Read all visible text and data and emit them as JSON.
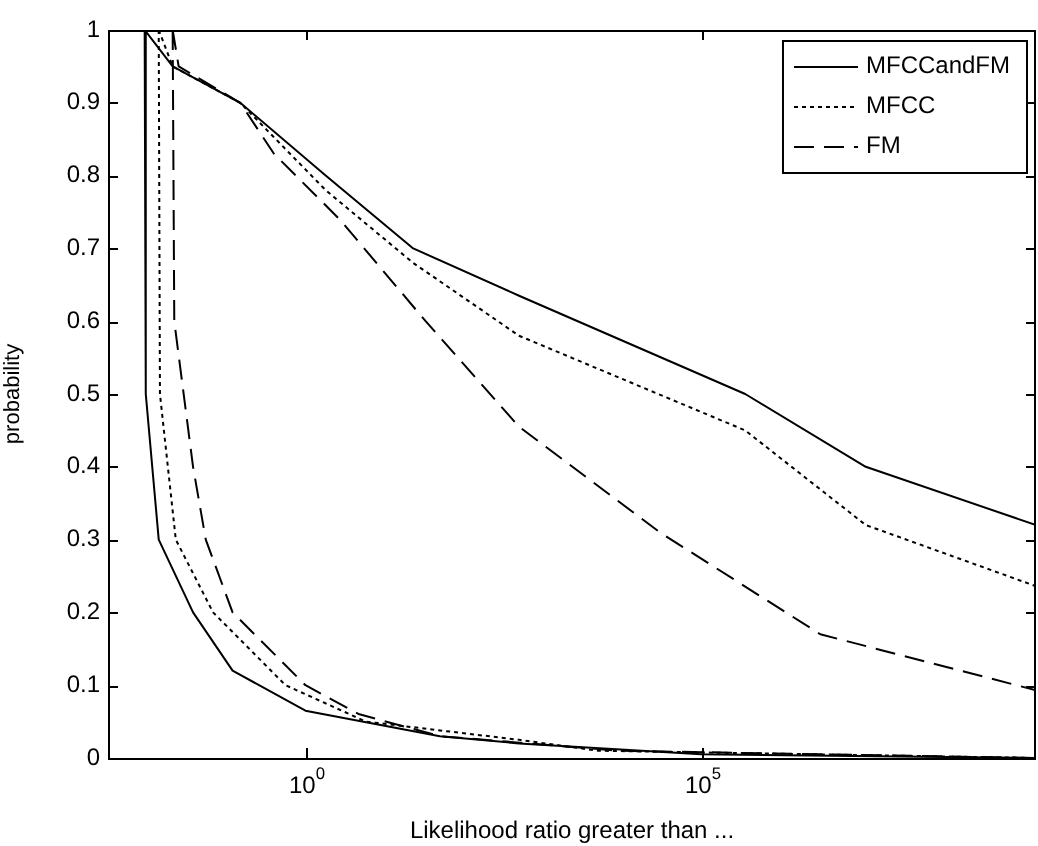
{
  "chart_data": {
    "type": "line",
    "xlabel": "Likelihood ratio greater than ...",
    "ylabel": "probability",
    "log": "x",
    "xlim": [
      0.0032,
      1700000000
    ],
    "xticks": [
      {
        "value": 1,
        "label": "10$^{0}$"
      },
      {
        "value": 100000,
        "label": "10$^{5}$"
      }
    ],
    "ylim": [
      0,
      1
    ],
    "yticks": [
      0,
      0.1,
      0.2,
      0.3,
      0.4,
      0.5,
      0.6,
      0.7,
      0.8,
      0.9,
      1
    ],
    "legend": "top right",
    "grid": false,
    "marker": "none",
    "series": [
      {
        "name": "MFCCandFM",
        "color": "#000000",
        "line_style": "solid",
        "x": [
          0.0093,
          0.021,
          0.15,
          1.8,
          23,
          500,
          360000,
          12000000,
          1700000000,
          null,
          0.0093,
          0.0096,
          0.014,
          0.038,
          0.12,
          1,
          50,
          500,
          100000,
          1700000000
        ],
        "values": [
          1,
          0.95,
          0.9,
          0.8,
          0.7,
          0.635,
          0.5,
          0.4,
          0.32,
          null,
          1,
          0.5,
          0.3,
          0.2,
          0.12,
          0.065,
          0.03,
          0.02,
          0.005,
          0
        ]
      },
      {
        "name": "MFCC",
        "color": "#000000",
        "line_style": "dotted",
        "x": [
          0.014,
          0.021,
          0.15,
          1.8,
          23,
          500,
          360000,
          12000000,
          1700000000,
          null,
          0.014,
          0.0145,
          0.023,
          0.068,
          0.56,
          5.8,
          500,
          5000,
          1700000000
        ],
        "values": [
          1,
          0.95,
          0.9,
          0.78,
          0.68,
          0.58,
          0.45,
          0.32,
          0.236,
          null,
          1,
          0.5,
          0.3,
          0.2,
          0.1,
          0.05,
          0.025,
          0.01,
          0
        ]
      },
      {
        "name": "FM",
        "color": "#000000",
        "line_style": "dashed",
        "x": [
          0.021,
          0.025,
          0.15,
          0.4,
          2.7,
          33,
          500,
          30000,
          3200000,
          1700000000,
          null,
          0.021,
          0.022,
          0.038,
          0.055,
          0.12,
          1,
          4.8,
          50,
          9000,
          1700000000
        ],
        "values": [
          1,
          0.95,
          0.9,
          0.83,
          0.74,
          0.6,
          0.455,
          0.31,
          0.17,
          0.093,
          null,
          1,
          0.6,
          0.4,
          0.3,
          0.2,
          0.1,
          0.06,
          0.03,
          0.01,
          0
        ]
      }
    ]
  }
}
